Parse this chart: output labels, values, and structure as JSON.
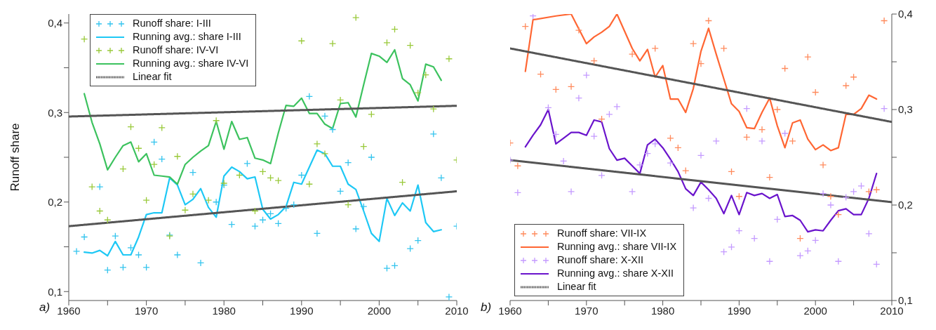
{
  "chart_data": [
    {
      "type": "line",
      "ylabel": "Runoff share",
      "annotations": [
        "a)"
      ],
      "legend": "top left",
      "xlim": [
        1960,
        2010
      ],
      "xticks": [
        1960,
        {
          "value": 1965,
          "label": null
        },
        1970,
        {
          "value": 1975,
          "label": null
        },
        1980,
        {
          "value": 1985,
          "label": null
        },
        1990,
        {
          "value": 1995,
          "label": null
        },
        2000,
        {
          "value": 2005,
          "label": null
        },
        2010
      ],
      "ylim": [
        0.09,
        0.41
      ],
      "yticks": [
        {
          "value": 0.1,
          "label": "0,1"
        },
        {
          "value": 0.15,
          "label": null
        },
        {
          "value": 0.2,
          "label": "0,2"
        },
        {
          "value": 0.25,
          "label": null
        },
        {
          "value": 0.3,
          "label": "0,3"
        },
        {
          "value": 0.35,
          "label": null
        },
        {
          "value": 0.4,
          "label": "0,4"
        }
      ],
      "series": [
        {
          "name": "Runoff share: I-III",
          "type": "scatter",
          "marker": "cross",
          "color": "#33c4ee",
          "x": [
            1961,
            1962,
            1964,
            1965,
            1966,
            1967,
            1968,
            1969,
            1970,
            1971,
            1972,
            1973,
            1974,
            1976,
            1977,
            1979,
            1980,
            1981,
            1983,
            1984,
            1985,
            1986,
            1987,
            1988,
            1989,
            1990,
            1991,
            1992,
            1993,
            1994,
            1995,
            1996,
            1997,
            1998,
            1999,
            2001,
            2002,
            2004,
            2005,
            2007,
            2008,
            2009,
            2010
          ],
          "values": [
            0.145,
            0.161,
            0.217,
            0.124,
            0.162,
            0.127,
            0.149,
            0.141,
            0.127,
            0.267,
            0.248,
            0.163,
            0.141,
            0.233,
            0.132,
            0.2,
            0.219,
            0.175,
            0.243,
            0.173,
            0.18,
            0.187,
            0.176,
            0.193,
            0.197,
            0.23,
            0.318,
            0.165,
            0.296,
            0.281,
            0.212,
            0.244,
            0.17,
            0.195,
            0.25,
            0.126,
            0.129,
            0.148,
            0.157,
            0.276,
            0.227,
            0.094,
            0.173
          ]
        },
        {
          "name": "Running avg.: share I-III",
          "marker": "none",
          "color": "#1ec8f5",
          "x": [
            1962,
            1963,
            1964,
            1965,
            1966,
            1967,
            1968,
            1969,
            1970,
            1971,
            1972,
            1973,
            1974,
            1975,
            1976,
            1977,
            1978,
            1979,
            1980,
            1981,
            1982,
            1983,
            1984,
            1985,
            1986,
            1987,
            1988,
            1989,
            1990,
            1991,
            1992,
            1993,
            1994,
            1995,
            1996,
            1997,
            1998,
            1999,
            2000,
            2001,
            2002,
            2003,
            2004,
            2005,
            2006,
            2007,
            2008
          ],
          "values": [
            0.144,
            0.143,
            0.146,
            0.14,
            0.156,
            0.141,
            0.141,
            0.161,
            0.186,
            0.188,
            0.188,
            0.227,
            0.219,
            0.197,
            0.203,
            0.215,
            0.194,
            0.183,
            0.229,
            0.239,
            0.234,
            0.226,
            0.228,
            0.192,
            0.181,
            0.186,
            0.195,
            0.222,
            0.22,
            0.239,
            0.258,
            0.254,
            0.24,
            0.24,
            0.22,
            0.214,
            0.19,
            0.165,
            0.156,
            0.204,
            0.185,
            0.199,
            0.19,
            0.219,
            0.177,
            0.167,
            0.169
          ]
        },
        {
          "name": "Runoff share: IV-VI",
          "type": "scatter",
          "marker": "cross",
          "color": "#99c93a",
          "x": [
            1962,
            1963,
            1964,
            1965,
            1967,
            1968,
            1969,
            1970,
            1971,
            1972,
            1973,
            1974,
            1975,
            1976,
            1978,
            1979,
            1980,
            1982,
            1984,
            1985,
            1986,
            1987,
            1990,
            1991,
            1992,
            1993,
            1994,
            1995,
            1996,
            1997,
            1998,
            1999,
            2001,
            2002,
            2003,
            2004,
            2005,
            2006,
            2007,
            2009,
            2010
          ],
          "values": [
            0.382,
            0.217,
            0.19,
            0.18,
            0.237,
            0.284,
            0.26,
            0.202,
            0.242,
            0.283,
            0.162,
            0.251,
            0.191,
            0.209,
            0.202,
            0.291,
            0.221,
            0.23,
            0.19,
            0.234,
            0.227,
            0.224,
            0.38,
            0.22,
            0.265,
            0.254,
            0.377,
            0.314,
            0.197,
            0.406,
            0.262,
            0.298,
            0.378,
            0.393,
            0.222,
            0.375,
            0.322,
            0.342,
            0.304,
            0.36,
            0.247
          ]
        },
        {
          "name": "Running avg.: share IV-VI",
          "marker": "none",
          "color": "#3cc25e",
          "x": [
            1962,
            1963,
            1964,
            1965,
            1966,
            1967,
            1968,
            1969,
            1970,
            1971,
            1972,
            1973,
            1974,
            1975,
            1976,
            1977,
            1978,
            1979,
            1980,
            1981,
            1982,
            1983,
            1984,
            1985,
            1986,
            1987,
            1988,
            1989,
            1990,
            1991,
            1992,
            1993,
            1994,
            1995,
            1996,
            1997,
            1998,
            1999,
            2000,
            2001,
            2002,
            2003,
            2004,
            2005,
            2006,
            2007,
            2008
          ],
          "values": [
            0.321,
            0.289,
            0.265,
            0.236,
            0.25,
            0.263,
            0.267,
            0.245,
            0.254,
            0.23,
            0.229,
            0.228,
            0.22,
            0.242,
            0.25,
            0.257,
            0.263,
            0.29,
            0.259,
            0.29,
            0.27,
            0.272,
            0.249,
            0.247,
            0.243,
            0.277,
            0.308,
            0.307,
            0.316,
            0.299,
            0.299,
            0.287,
            0.282,
            0.31,
            0.311,
            0.295,
            0.331,
            0.366,
            0.363,
            0.356,
            0.37,
            0.338,
            0.331,
            0.313,
            0.354,
            0.351,
            0.336
          ]
        },
        {
          "name": "Linear fit",
          "marker": "none",
          "color": "#555555",
          "line_style": "dotted",
          "x": [
            1960,
            2010
          ],
          "values": [
            0.2955,
            0.3075
          ]
        },
        {
          "marker": "none",
          "color": "#555555",
          "line_style": "dotted",
          "x": [
            1960,
            2010
          ],
          "values": [
            0.173,
            0.212
          ]
        }
      ]
    },
    {
      "type": "line",
      "annotations": [
        "b)"
      ],
      "legend": "bottom left",
      "xlim": [
        1960,
        2010
      ],
      "xticks": [
        1960,
        {
          "value": 1965,
          "label": null
        },
        1970,
        {
          "value": 1975,
          "label": null
        },
        1980,
        {
          "value": 1985,
          "label": null
        },
        1990,
        {
          "value": 1995,
          "label": null
        },
        2000,
        {
          "value": 2005,
          "label": null
        },
        2010
      ],
      "ylim": [
        0.1,
        0.4
      ],
      "yticks": [
        {
          "value": 0.1,
          "label": "0,1"
        },
        {
          "value": 0.15,
          "label": null
        },
        {
          "value": 0.2,
          "label": "0,2"
        },
        {
          "value": 0.25,
          "label": null
        },
        {
          "value": 0.3,
          "label": "0,3"
        },
        {
          "value": 0.35,
          "label": null
        },
        {
          "value": 0.4,
          "label": "0,4"
        }
      ],
      "series": [
        {
          "name": "Runoff share: VII-IX",
          "type": "scatter",
          "marker": "cross",
          "color": "#ff8a5c",
          "x": [
            1960,
            1961,
            1962,
            1964,
            1966,
            1968,
            1969,
            1971,
            1972,
            1976,
            1979,
            1981,
            1982,
            1983,
            1984,
            1985,
            1986,
            1988,
            1989,
            1990,
            1991,
            1993,
            1994,
            1995,
            1996,
            1997,
            1998,
            1999,
            2000,
            2001,
            2002,
            2003,
            2004,
            2005,
            2007,
            2008,
            2009
          ],
          "values": [
            0.265,
            0.241,
            0.387,
            0.337,
            0.321,
            0.324,
            0.383,
            0.351,
            0.29,
            0.358,
            0.364,
            0.27,
            0.26,
            0.236,
            0.369,
            0.348,
            0.393,
            0.364,
            0.235,
            0.209,
            0.271,
            0.279,
            0.229,
            0.3,
            0.343,
            0.267,
            0.165,
            0.355,
            0.318,
            0.242,
            0.209,
            0.19,
            0.325,
            0.334,
            0.214,
            0.216,
            0.393
          ]
        },
        {
          "name": "Running avg.: share VII-IX",
          "marker": "none",
          "color": "#ff6633",
          "x": [
            1962,
            1963,
            1966,
            1968,
            1970,
            1971,
            1972,
            1973,
            1974,
            1975,
            1976,
            1977,
            1978,
            1979,
            1980,
            1981,
            1982,
            1983,
            1984,
            1985,
            1986,
            1987,
            1988,
            1989,
            1990,
            1991,
            1992,
            1993,
            1994,
            1995,
            1996,
            1997,
            1998,
            1999,
            2000,
            2001,
            2002,
            2003,
            2004,
            2005,
            2006,
            2007,
            2008
          ],
          "values": [
            0.34,
            0.394,
            0.398,
            0.4,
            0.369,
            0.376,
            0.381,
            0.387,
            0.4,
            0.382,
            0.364,
            0.351,
            0.363,
            0.334,
            0.346,
            0.311,
            0.311,
            0.297,
            0.322,
            0.361,
            0.385,
            0.358,
            0.332,
            0.306,
            0.298,
            0.281,
            0.28,
            0.297,
            0.312,
            0.283,
            0.26,
            0.286,
            0.289,
            0.269,
            0.258,
            0.263,
            0.257,
            0.26,
            0.295,
            0.295,
            0.301,
            0.315,
            0.311
          ]
        },
        {
          "name": "Runoff share: X-XII",
          "type": "scatter",
          "marker": "cross",
          "color": "#c49aff",
          "x": [
            1960,
            1961,
            1963,
            1965,
            1966,
            1967,
            1968,
            1969,
            1970,
            1971,
            1972,
            1973,
            1974,
            1976,
            1977,
            1978,
            1979,
            1981,
            1984,
            1985,
            1986,
            1987,
            1988,
            1989,
            1990,
            1991,
            1992,
            1993,
            1994,
            1995,
            1996,
            1998,
            1999,
            2000,
            2001,
            2002,
            2003,
            2004,
            2005,
            2006,
            2007,
            2008,
            2009
          ],
          "values": [
            0.247,
            0.213,
            0.398,
            0.302,
            0.274,
            0.246,
            0.214,
            0.312,
            0.336,
            0.272,
            0.231,
            0.295,
            0.303,
            0.214,
            0.242,
            0.254,
            0.264,
            0.244,
            0.197,
            0.252,
            0.207,
            0.267,
            0.151,
            0.156,
            0.173,
            0.301,
            0.165,
            0.267,
            0.141,
            0.185,
            0.275,
            0.147,
            0.152,
            0.163,
            0.212,
            0.2,
            0.141,
            0.208,
            0.214,
            0.22,
            0.17,
            0.138,
            0.301
          ]
        },
        {
          "name": "Running avg.: share X-XII",
          "marker": "none",
          "color": "#6a14cc",
          "x": [
            1962,
            1963,
            1964,
            1965,
            1966,
            1967,
            1968,
            1969,
            1970,
            1971,
            1972,
            1973,
            1974,
            1975,
            1976,
            1977,
            1978,
            1979,
            1980,
            1981,
            1982,
            1983,
            1984,
            1985,
            1986,
            1987,
            1988,
            1989,
            1990,
            1991,
            1992,
            1993,
            1994,
            1995,
            1996,
            1997,
            1998,
            1999,
            2000,
            2001,
            2002,
            2003,
            2004,
            2005,
            2006,
            2007,
            2008
          ],
          "values": [
            0.261,
            0.273,
            0.284,
            0.3,
            0.264,
            0.27,
            0.276,
            0.276,
            0.273,
            0.289,
            0.287,
            0.259,
            0.247,
            0.249,
            0.241,
            0.233,
            0.263,
            0.269,
            0.26,
            0.248,
            0.235,
            0.217,
            0.21,
            0.224,
            0.216,
            0.207,
            0.191,
            0.21,
            0.19,
            0.213,
            0.21,
            0.212,
            0.207,
            0.211,
            0.188,
            0.189,
            0.184,
            0.172,
            0.174,
            0.173,
            0.184,
            0.194,
            0.196,
            0.19,
            0.19,
            0.207,
            0.233
          ]
        },
        {
          "name": "Linear fit",
          "marker": "none",
          "color": "#555555",
          "line_style": "dotted",
          "x": [
            1960,
            2010
          ],
          "values": [
            0.364,
            0.287
          ]
        },
        {
          "marker": "none",
          "color": "#555555",
          "line_style": "dotted",
          "x": [
            1960,
            2010
          ],
          "values": [
            0.247,
            0.203
          ]
        }
      ]
    }
  ]
}
